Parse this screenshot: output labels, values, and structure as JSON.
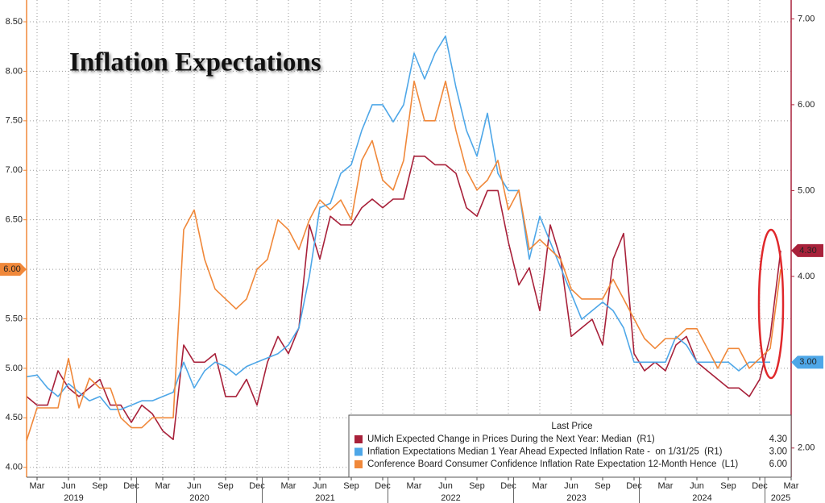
{
  "chart_data": {
    "type": "line",
    "title": "Inflation Expectations",
    "legend_header": "Last Price",
    "categories": [
      null,
      "Mar",
      null,
      null,
      "Jun",
      null,
      null,
      "Sep",
      null,
      null,
      "Dec",
      null,
      null,
      "Mar",
      null,
      null,
      "Jun",
      null,
      null,
      "Sep",
      null,
      null,
      "Dec",
      null,
      null,
      "Mar",
      null,
      null,
      "Jun",
      null,
      null,
      "Sep",
      null,
      null,
      "Dec",
      null,
      null,
      "Mar",
      null,
      null,
      "Jun",
      null,
      null,
      "Sep",
      null,
      null,
      "Dec",
      null,
      null,
      "Mar",
      null,
      null,
      "Jun",
      null,
      null,
      "Sep",
      null,
      null,
      "Dec",
      null,
      null,
      "Mar",
      null,
      null,
      "Jun",
      null,
      null,
      "Sep",
      null,
      null,
      "Dec",
      null,
      null,
      "Mar"
    ],
    "year_labels": [
      "2019",
      "2020",
      "2021",
      "2022",
      "2023",
      "2024",
      "2025"
    ],
    "ylim": [
      3.9,
      8.72
    ],
    "yticks": [
      {
        "value": 4,
        "label": "4.00"
      },
      {
        "value": 4.5,
        "label": "4.50"
      },
      {
        "value": 5,
        "label": "5.00"
      },
      {
        "value": 5.5,
        "label": "5.50"
      },
      {
        "value": 6,
        "label": "6.00"
      },
      {
        "value": 6.5,
        "label": "6.50"
      },
      {
        "value": 7,
        "label": "7.00"
      },
      {
        "value": 7.5,
        "label": "7.50"
      },
      {
        "value": 8,
        "label": "8.00"
      },
      {
        "value": 8.5,
        "label": "8.50"
      }
    ],
    "y2lim": [
      1.66,
      7.22
    ],
    "y2ticks": [
      {
        "value": 2,
        "label": "2.00"
      },
      {
        "value": 3,
        "label": "3.00"
      },
      {
        "value": 4,
        "label": "4.00"
      },
      {
        "value": 5,
        "label": "5.00"
      },
      {
        "value": 6,
        "label": "6.00"
      },
      {
        "value": 7,
        "label": "7.00"
      }
    ],
    "grid": true,
    "series": [
      {
        "name": "UMich Expected Change in Prices During the Next Year: Median  (R1)",
        "color": "#a8213a",
        "axis": "y2",
        "last_price": {
          "value": 4.3,
          "label": "4.30"
        },
        "values": [
          2.6,
          2.5,
          2.5,
          2.9,
          2.7,
          2.6,
          2.7,
          2.8,
          2.5,
          2.5,
          2.3,
          2.5,
          2.4,
          2.2,
          2.1,
          3.2,
          3.0,
          3.0,
          3.1,
          2.6,
          2.6,
          2.8,
          2.5,
          3.0,
          3.3,
          3.1,
          3.4,
          4.6,
          4.2,
          4.7,
          4.6,
          4.6,
          4.8,
          4.9,
          4.8,
          4.9,
          4.9,
          5.4,
          5.4,
          5.3,
          5.3,
          5.2,
          4.8,
          4.7,
          5.0,
          5.0,
          4.4,
          3.9,
          4.1,
          3.6,
          4.6,
          4.2,
          3.3,
          3.4,
          3.5,
          3.2,
          4.2,
          4.5,
          3.1,
          2.9,
          3.0,
          2.9,
          3.2,
          3.3,
          3.0,
          2.9,
          2.8,
          2.7,
          2.7,
          2.6,
          2.8,
          3.3,
          4.3,
          null
        ]
      },
      {
        "name": "Inflation Expectations Median 1 Year Ahead Expected Inflation Rate -  on 1/31/25  (R1)",
        "color": "#4ea7e8",
        "axis": "y2",
        "last_price": {
          "value": 3,
          "label": "3.00"
        },
        "values": [
          2.83,
          2.85,
          2.7,
          2.6,
          2.75,
          2.65,
          2.55,
          2.6,
          2.45,
          2.45,
          2.5,
          2.55,
          2.55,
          2.6,
          2.65,
          3.0,
          2.7,
          2.9,
          3.0,
          2.95,
          2.85,
          2.95,
          3.0,
          3.05,
          3.1,
          3.2,
          3.4,
          4.0,
          4.8,
          4.85,
          5.2,
          5.3,
          5.7,
          6.0,
          6.0,
          5.8,
          6.0,
          6.6,
          6.3,
          6.6,
          6.8,
          6.2,
          5.7,
          5.4,
          5.9,
          5.2,
          5.0,
          5.0,
          4.2,
          4.7,
          4.4,
          4.1,
          3.8,
          3.5,
          3.6,
          3.7,
          3.6,
          3.4,
          3.0,
          3.0,
          3.0,
          3.0,
          3.3,
          3.2,
          3.0,
          3.0,
          3.0,
          3.0,
          2.9,
          3.0,
          3.0,
          3.0,
          null,
          null
        ]
      },
      {
        "name": "Conference Board Consumer Confidence Inflation Rate Expectation 12-Month Hence  (L1)",
        "color": "#f0883a",
        "axis": "y",
        "last_price": {
          "value": 6,
          "label": "6.00"
        },
        "values": [
          4.27,
          4.6,
          4.6,
          4.6,
          5.1,
          4.6,
          4.9,
          4.8,
          4.8,
          4.5,
          4.4,
          4.4,
          4.5,
          4.5,
          4.5,
          6.4,
          6.6,
          6.1,
          5.8,
          5.7,
          5.6,
          5.7,
          6.0,
          6.1,
          6.5,
          6.4,
          6.2,
          6.5,
          6.7,
          6.6,
          6.7,
          6.5,
          7.1,
          7.3,
          6.9,
          6.8,
          7.1,
          7.9,
          7.5,
          7.5,
          7.9,
          7.4,
          7.0,
          6.8,
          6.9,
          7.1,
          6.6,
          6.8,
          6.2,
          6.3,
          6.2,
          6.1,
          5.8,
          5.7,
          5.7,
          5.7,
          5.9,
          5.7,
          5.5,
          5.3,
          5.2,
          5.3,
          5.3,
          5.4,
          5.4,
          5.2,
          5.0,
          5.2,
          5.2,
          5.0,
          5.1,
          5.2,
          6.0,
          null
        ]
      }
    ]
  }
}
